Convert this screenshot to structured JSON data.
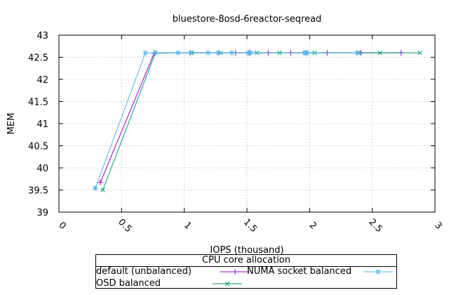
{
  "chart_data": {
    "type": "line",
    "title": "bluestore-8osd-6reactor-seqread",
    "xlabel": "IOPS (thousand)",
    "ylabel": "MEM",
    "xlim": [
      0,
      3
    ],
    "ylim": [
      39,
      43
    ],
    "x_ticks": [
      "0",
      "0.5",
      "1",
      "1.5",
      "2",
      "2.5",
      "3"
    ],
    "y_ticks": [
      "39",
      "39.5",
      "40",
      "40.5",
      "41",
      "41.5",
      "42",
      "42.5",
      "43"
    ],
    "grid": true,
    "legend_title": "CPU core allocation",
    "legend_position": "bottom",
    "series": [
      {
        "name": "default (unbalanced)",
        "color": "#9400d3",
        "marker": "plus",
        "x": [
          0.33,
          0.76,
          1.05,
          1.27,
          1.41,
          1.52,
          1.67,
          1.85,
          1.97,
          2.14,
          2.41,
          2.73
        ],
        "y": [
          39.67,
          42.59,
          42.6,
          42.6,
          42.6,
          42.6,
          42.6,
          42.6,
          42.6,
          42.6,
          42.6,
          42.6
        ]
      },
      {
        "name": "NUMA socket balanced",
        "color": "#009e73",
        "marker": "cross",
        "x": [
          0.35,
          0.77,
          1.06,
          1.29,
          1.51,
          1.58,
          1.76,
          1.96,
          2.04,
          2.39,
          2.56,
          2.88
        ],
        "y": [
          39.5,
          42.6,
          42.6,
          42.6,
          42.6,
          42.6,
          42.6,
          42.6,
          42.6,
          42.6,
          42.6,
          42.6
        ]
      },
      {
        "name": "OSD balanced",
        "color": "#56b4e9",
        "marker": "star",
        "x": [
          0.29,
          0.69,
          0.77,
          0.95,
          1.05,
          1.19,
          1.27,
          1.38,
          1.51,
          1.53,
          1.96,
          1.97,
          1.98,
          2.38
        ],
        "y": [
          39.54,
          42.6,
          42.6,
          42.6,
          42.6,
          42.6,
          42.6,
          42.6,
          42.6,
          42.6,
          42.6,
          42.6,
          42.6,
          42.6
        ]
      }
    ]
  }
}
